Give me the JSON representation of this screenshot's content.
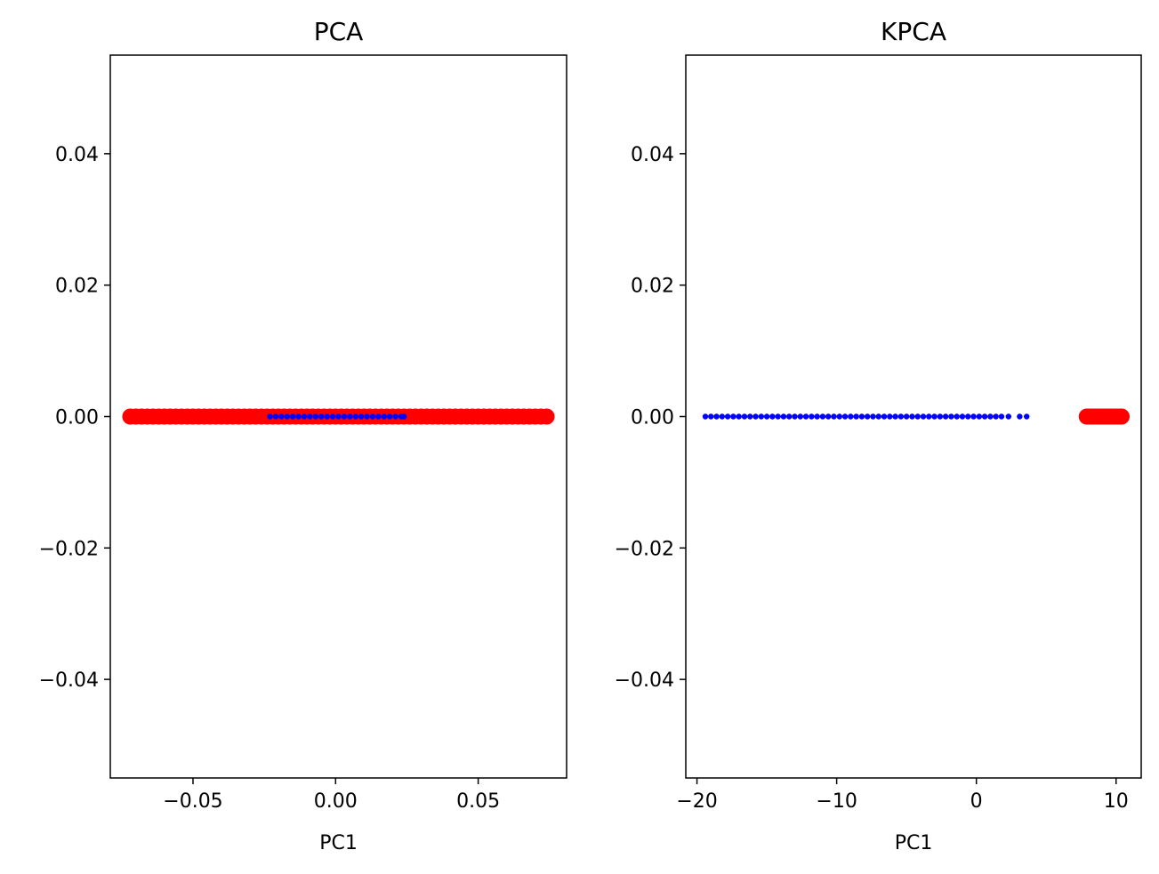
{
  "chart_data": [
    {
      "type": "scatter",
      "title": "PCA",
      "xlabel": "PC1",
      "ylabel": "",
      "xlim": [
        -0.079,
        0.081
      ],
      "ylim": [
        -0.055,
        0.055
      ],
      "xticks": [
        {
          "value": -0.05,
          "label": "−0.05"
        },
        {
          "value": 0.0,
          "label": "0.00"
        },
        {
          "value": 0.05,
          "label": "0.05"
        }
      ],
      "yticks": [
        {
          "value": -0.04,
          "label": "−0.04"
        },
        {
          "value": -0.02,
          "label": "−0.02"
        },
        {
          "value": 0.0,
          "label": "0.00"
        },
        {
          "value": 0.02,
          "label": "0.02"
        },
        {
          "value": 0.04,
          "label": "0.04"
        }
      ],
      "grid": false,
      "series": [
        {
          "color": "#ff0000",
          "marker_size": "large",
          "x": [
            -0.072,
            -0.07,
            -0.068,
            -0.066,
            -0.064,
            -0.062,
            -0.06,
            -0.058,
            -0.056,
            -0.054,
            -0.052,
            -0.05,
            -0.048,
            -0.046,
            -0.044,
            -0.042,
            -0.04,
            -0.038,
            -0.036,
            -0.034,
            -0.032,
            -0.03,
            -0.028,
            -0.026,
            -0.024,
            -0.022,
            -0.02,
            -0.018,
            -0.016,
            -0.014,
            -0.012,
            -0.01,
            -0.008,
            -0.006,
            -0.004,
            -0.002,
            0.0,
            0.002,
            0.004,
            0.006,
            0.008,
            0.01,
            0.012,
            0.014,
            0.016,
            0.018,
            0.02,
            0.022,
            0.024,
            0.026,
            0.028,
            0.03,
            0.032,
            0.034,
            0.036,
            0.038,
            0.04,
            0.042,
            0.044,
            0.046,
            0.048,
            0.05,
            0.052,
            0.054,
            0.056,
            0.058,
            0.06,
            0.062,
            0.064,
            0.066,
            0.068,
            0.07,
            0.072,
            0.074
          ],
          "y": [
            0,
            0,
            0,
            0,
            0,
            0,
            0,
            0,
            0,
            0,
            0,
            0,
            0,
            0,
            0,
            0,
            0,
            0,
            0,
            0,
            0,
            0,
            0,
            0,
            0,
            0,
            0,
            0,
            0,
            0,
            0,
            0,
            0,
            0,
            0,
            0,
            0,
            0,
            0,
            0,
            0,
            0,
            0,
            0,
            0,
            0,
            0,
            0,
            0,
            0,
            0,
            0,
            0,
            0,
            0,
            0,
            0,
            0,
            0,
            0,
            0,
            0,
            0,
            0,
            0,
            0,
            0,
            0,
            0,
            0,
            0,
            0,
            0,
            0
          ]
        },
        {
          "color": "#0000ff",
          "marker_size": "small",
          "x": [
            -0.023,
            -0.021,
            -0.019,
            -0.017,
            -0.015,
            -0.013,
            -0.011,
            -0.009,
            -0.007,
            -0.005,
            -0.003,
            -0.001,
            0.001,
            0.003,
            0.005,
            0.007,
            0.009,
            0.011,
            0.013,
            0.015,
            0.017,
            0.019,
            0.021,
            0.023,
            0.024
          ],
          "y": [
            0,
            0,
            0,
            0,
            0,
            0,
            0,
            0,
            0,
            0,
            0,
            0,
            0,
            0,
            0,
            0,
            0,
            0,
            0,
            0,
            0,
            0,
            0,
            0,
            0
          ]
        }
      ]
    },
    {
      "type": "scatter",
      "title": "KPCA",
      "xlabel": "PC1",
      "ylabel": "",
      "xlim": [
        -20.8,
        11.8
      ],
      "ylim": [
        -0.055,
        0.055
      ],
      "xticks": [
        {
          "value": -20,
          "label": "−20"
        },
        {
          "value": -10,
          "label": "−10"
        },
        {
          "value": 0,
          "label": "0"
        },
        {
          "value": 10,
          "label": "10"
        }
      ],
      "yticks": [
        {
          "value": -0.04,
          "label": "−0.04"
        },
        {
          "value": -0.02,
          "label": "−0.02"
        },
        {
          "value": 0.0,
          "label": "0.00"
        },
        {
          "value": 0.02,
          "label": "0.02"
        },
        {
          "value": 0.04,
          "label": "0.04"
        }
      ],
      "grid": false,
      "series": [
        {
          "color": "#0000ff",
          "marker_size": "small",
          "x": [
            -19.4,
            -19.0,
            -18.6,
            -18.2,
            -17.8,
            -17.4,
            -17.0,
            -16.6,
            -16.2,
            -15.8,
            -15.4,
            -15.0,
            -14.6,
            -14.2,
            -13.8,
            -13.4,
            -13.0,
            -12.6,
            -12.2,
            -11.8,
            -11.4,
            -11.0,
            -10.6,
            -10.2,
            -9.8,
            -9.4,
            -9.0,
            -8.6,
            -8.2,
            -7.8,
            -7.4,
            -7.0,
            -6.6,
            -6.2,
            -5.8,
            -5.4,
            -5.0,
            -4.6,
            -4.2,
            -3.8,
            -3.4,
            -3.0,
            -2.6,
            -2.2,
            -1.8,
            -1.4,
            -1.0,
            -0.6,
            -0.2,
            0.2,
            0.6,
            1.0,
            1.4,
            1.8,
            2.3,
            3.1,
            3.6
          ],
          "y": [
            0,
            0,
            0,
            0,
            0,
            0,
            0,
            0,
            0,
            0,
            0,
            0,
            0,
            0,
            0,
            0,
            0,
            0,
            0,
            0,
            0,
            0,
            0,
            0,
            0,
            0,
            0,
            0,
            0,
            0,
            0,
            0,
            0,
            0,
            0,
            0,
            0,
            0,
            0,
            0,
            0,
            0,
            0,
            0,
            0,
            0,
            0,
            0,
            0,
            0,
            0,
            0,
            0,
            0,
            0,
            0,
            0
          ]
        },
        {
          "color": "#ff0000",
          "marker_size": "large",
          "x": [
            7.9,
            8.1,
            8.3,
            8.5,
            8.7,
            8.9,
            9.1,
            9.3,
            9.5,
            9.7,
            9.9,
            10.1,
            10.3,
            10.4
          ],
          "y": [
            0,
            0,
            0,
            0,
            0,
            0,
            0,
            0,
            0,
            0,
            0,
            0,
            0,
            0
          ]
        }
      ]
    }
  ]
}
